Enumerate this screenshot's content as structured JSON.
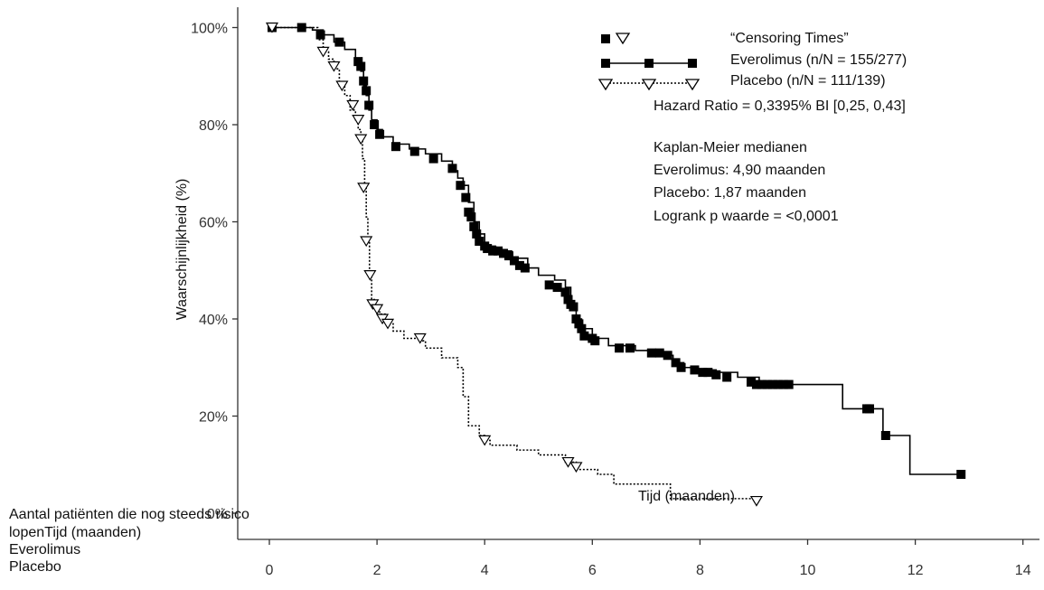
{
  "chart_data": {
    "type": "line",
    "title": "",
    "xlabel": "Tijd (maanden)",
    "ylabel": "Waarschijnlijkheid (%)",
    "xlim": [
      0,
      14
    ],
    "ylim": [
      0,
      100
    ],
    "x_ticks": [
      "0",
      "2",
      "4",
      "6",
      "8",
      "10",
      "12",
      "14"
    ],
    "y_ticks": [
      "0%",
      "20%",
      "40%",
      "60%",
      "80%",
      "100%"
    ],
    "grid": false,
    "legend_position": "top-right",
    "censoring_label": "“Censoring Times”",
    "series": [
      {
        "name": "Everolimus (n/N = 155/277)",
        "color": "#000000",
        "line_style": "solid",
        "marker": "filled-square",
        "steps": [
          [
            0,
            100
          ],
          [
            0.8,
            99.5
          ],
          [
            1.0,
            98.5
          ],
          [
            1.2,
            97
          ],
          [
            1.4,
            95.5
          ],
          [
            1.6,
            93.5
          ],
          [
            1.7,
            91
          ],
          [
            1.75,
            88
          ],
          [
            1.8,
            86
          ],
          [
            1.85,
            83
          ],
          [
            1.9,
            81
          ],
          [
            2.0,
            79
          ],
          [
            2.1,
            77.5
          ],
          [
            2.3,
            76
          ],
          [
            2.6,
            75
          ],
          [
            2.9,
            74
          ],
          [
            3.2,
            72.5
          ],
          [
            3.4,
            70.5
          ],
          [
            3.5,
            69
          ],
          [
            3.6,
            67.5
          ],
          [
            3.7,
            64
          ],
          [
            3.8,
            60
          ],
          [
            3.9,
            57.5
          ],
          [
            4.0,
            55
          ],
          [
            4.2,
            54
          ],
          [
            4.5,
            52.5
          ],
          [
            4.8,
            50.5
          ],
          [
            5.0,
            49
          ],
          [
            5.3,
            48
          ],
          [
            5.5,
            46.5
          ],
          [
            5.6,
            43
          ],
          [
            5.7,
            40
          ],
          [
            5.8,
            38
          ],
          [
            6.0,
            36
          ],
          [
            6.3,
            34.5
          ],
          [
            6.8,
            33.5
          ],
          [
            7.2,
            32.5
          ],
          [
            7.5,
            31
          ],
          [
            7.7,
            30
          ],
          [
            7.9,
            29.5
          ],
          [
            8.3,
            29
          ],
          [
            8.7,
            28
          ],
          [
            9.1,
            27
          ],
          [
            9.6,
            26.5
          ],
          [
            10.6,
            26.5
          ],
          [
            10.65,
            21.5
          ],
          [
            11.35,
            21.5
          ],
          [
            11.4,
            16
          ],
          [
            11.85,
            16
          ],
          [
            11.9,
            8
          ],
          [
            12.85,
            8
          ]
        ],
        "censored": [
          [
            0.05,
            100
          ],
          [
            0.6,
            100
          ],
          [
            0.95,
            98.5
          ],
          [
            1.3,
            97
          ],
          [
            1.65,
            93
          ],
          [
            1.7,
            92
          ],
          [
            1.75,
            89
          ],
          [
            1.8,
            87
          ],
          [
            1.85,
            84
          ],
          [
            1.95,
            80
          ],
          [
            2.05,
            78
          ],
          [
            2.35,
            75.5
          ],
          [
            2.7,
            74.5
          ],
          [
            3.05,
            73
          ],
          [
            3.4,
            71
          ],
          [
            3.55,
            67.5
          ],
          [
            3.65,
            65
          ],
          [
            3.7,
            62
          ],
          [
            3.75,
            61
          ],
          [
            3.8,
            59
          ],
          [
            3.85,
            57.5
          ],
          [
            3.9,
            56
          ],
          [
            4.0,
            55
          ],
          [
            4.05,
            54.5
          ],
          [
            4.15,
            54
          ],
          [
            4.25,
            54
          ],
          [
            4.35,
            53.5
          ],
          [
            4.45,
            53
          ],
          [
            4.55,
            52
          ],
          [
            4.65,
            51
          ],
          [
            4.75,
            50.5
          ],
          [
            5.2,
            47
          ],
          [
            5.35,
            46.5
          ],
          [
            5.5,
            45.5
          ],
          [
            5.55,
            44
          ],
          [
            5.6,
            43
          ],
          [
            5.65,
            42.5
          ],
          [
            5.7,
            40
          ],
          [
            5.75,
            39
          ],
          [
            5.8,
            38
          ],
          [
            5.85,
            36.5
          ],
          [
            6.0,
            36
          ],
          [
            6.05,
            35.5
          ],
          [
            6.5,
            34
          ],
          [
            6.7,
            34
          ],
          [
            7.1,
            33
          ],
          [
            7.25,
            33
          ],
          [
            7.4,
            32.5
          ],
          [
            7.55,
            31
          ],
          [
            7.65,
            30
          ],
          [
            7.9,
            29.5
          ],
          [
            8.05,
            29
          ],
          [
            8.15,
            29
          ],
          [
            8.3,
            28.5
          ],
          [
            8.5,
            28
          ],
          [
            8.95,
            27
          ],
          [
            9.05,
            26.5
          ],
          [
            9.15,
            26.5
          ],
          [
            9.25,
            26.5
          ],
          [
            9.35,
            26.5
          ],
          [
            9.45,
            26.5
          ],
          [
            9.55,
            26.5
          ],
          [
            9.65,
            26.5
          ],
          [
            11.1,
            21.5
          ],
          [
            11.15,
            21.5
          ],
          [
            11.45,
            16
          ],
          [
            12.85,
            8
          ]
        ]
      },
      {
        "name": "Placebo (n/N = 111/139)",
        "color": "#000000",
        "line_style": "dotted",
        "marker": "open-triangle",
        "steps": [
          [
            0,
            100
          ],
          [
            0.9,
            97.5
          ],
          [
            1.0,
            95
          ],
          [
            1.1,
            93.5
          ],
          [
            1.2,
            91.5
          ],
          [
            1.3,
            88
          ],
          [
            1.4,
            86
          ],
          [
            1.5,
            83
          ],
          [
            1.6,
            81
          ],
          [
            1.65,
            79
          ],
          [
            1.7,
            77
          ],
          [
            1.73,
            73
          ],
          [
            1.77,
            67
          ],
          [
            1.8,
            61
          ],
          [
            1.83,
            56
          ],
          [
            1.86,
            49
          ],
          [
            1.9,
            44
          ],
          [
            1.95,
            42
          ],
          [
            2.05,
            41
          ],
          [
            2.15,
            39
          ],
          [
            2.3,
            37.5
          ],
          [
            2.5,
            36
          ],
          [
            2.85,
            35.5
          ],
          [
            2.9,
            34
          ],
          [
            3.2,
            32
          ],
          [
            3.5,
            30
          ],
          [
            3.6,
            24
          ],
          [
            3.7,
            18
          ],
          [
            3.9,
            16
          ],
          [
            4.0,
            15
          ],
          [
            4.1,
            14
          ],
          [
            4.6,
            13
          ],
          [
            5.0,
            12
          ],
          [
            5.5,
            10.5
          ],
          [
            5.7,
            9
          ],
          [
            6.1,
            8
          ],
          [
            6.4,
            6
          ],
          [
            7.4,
            6
          ],
          [
            7.45,
            3
          ],
          [
            9.0,
            3
          ]
        ],
        "censored": [
          [
            0.05,
            100
          ],
          [
            1.0,
            95
          ],
          [
            1.2,
            92
          ],
          [
            1.35,
            88
          ],
          [
            1.55,
            84
          ],
          [
            1.65,
            81
          ],
          [
            1.7,
            77
          ],
          [
            1.75,
            67
          ],
          [
            1.8,
            56
          ],
          [
            1.87,
            49
          ],
          [
            1.92,
            43
          ],
          [
            2.0,
            42
          ],
          [
            2.1,
            40
          ],
          [
            2.2,
            39
          ],
          [
            2.8,
            36
          ],
          [
            4.0,
            15
          ],
          [
            5.55,
            10.5
          ],
          [
            5.7,
            9.5
          ],
          [
            9.05,
            2.5
          ]
        ]
      }
    ],
    "annotations": [
      "Hazard Ratio = 0,3395% BI [0,25, 0,43]",
      "Kaplan-Meier medianen",
      "Everolimus: 4,90 maanden",
      "Placebo: 1,87 maanden",
      "Logrank p waarde = <0,0001"
    ]
  },
  "risk_table": {
    "header_line1": "Aantal patiënten die nog steeds risico",
    "header_line2": "lopenTijd (maanden)",
    "row_everolimus": "Everolimus",
    "row_placebo": "Placebo"
  }
}
